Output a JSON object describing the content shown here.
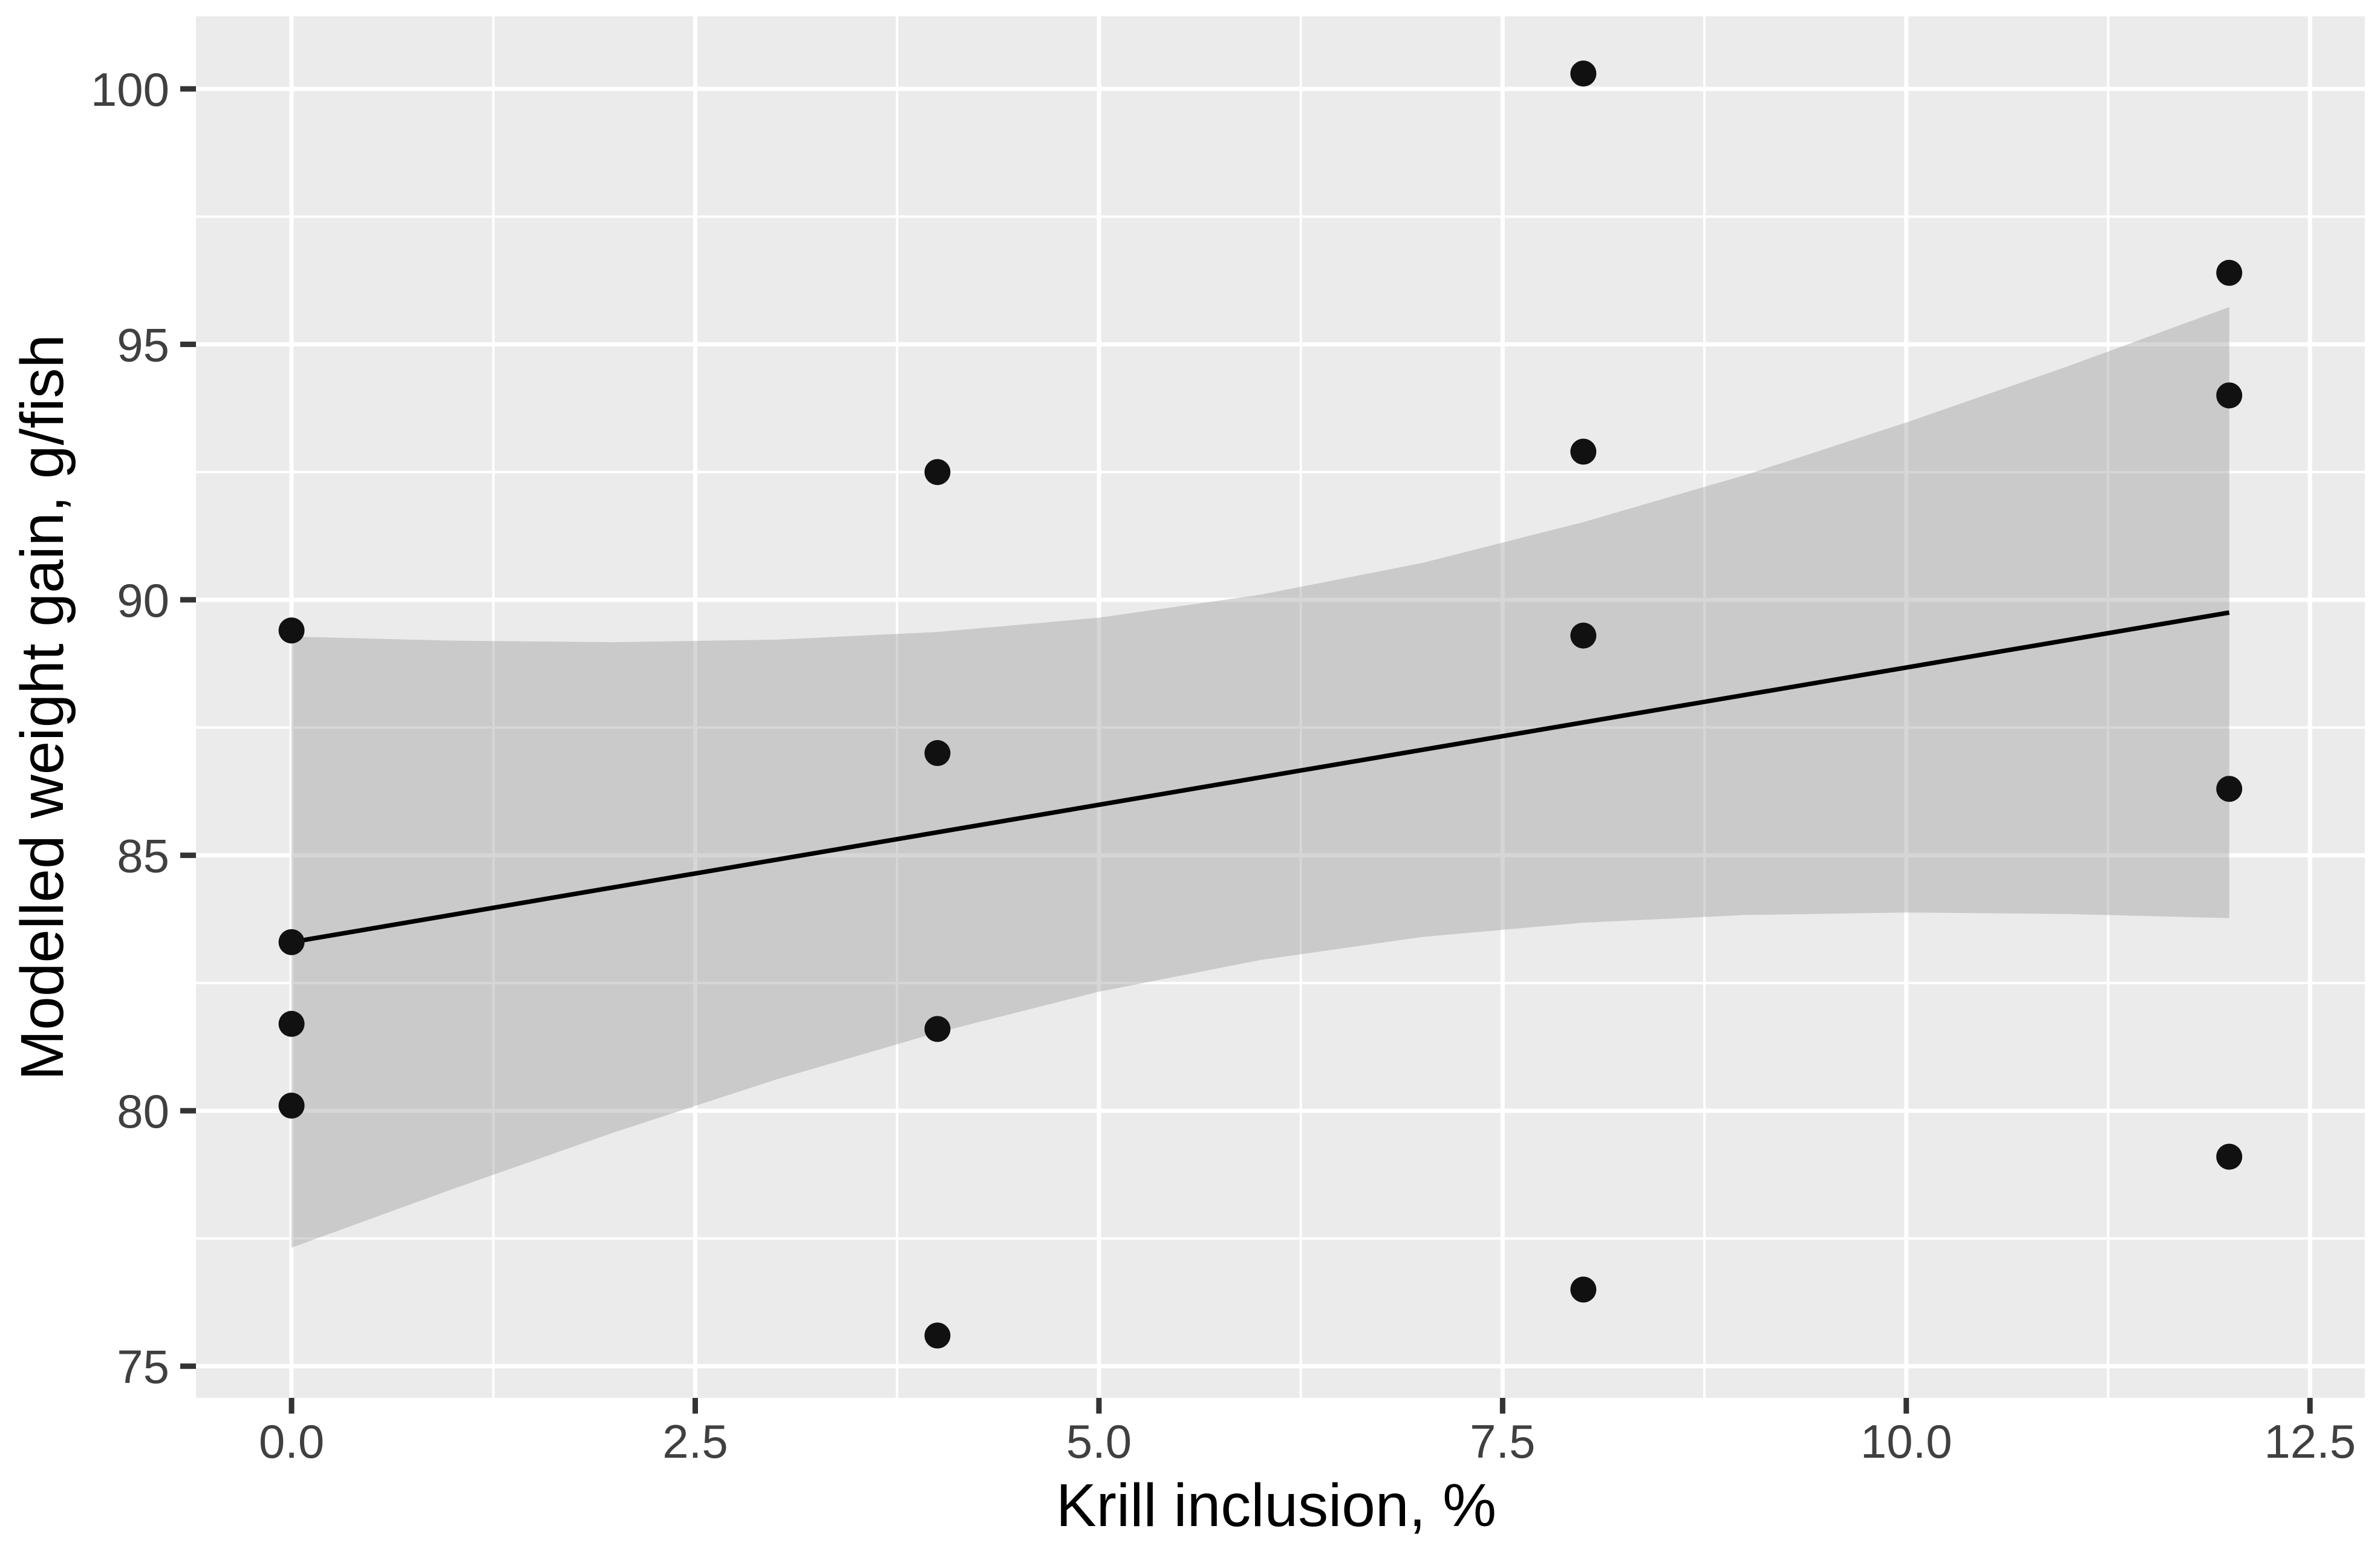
{
  "figure": {
    "background": "#FFFFFF",
    "panel_background": "#EBEBEB",
    "gridline_color": "#FFFFFF",
    "tick_mark_color": "#333333",
    "tick_label_color": "#404040",
    "axis_title_color": "#000000",
    "point_color": "#111111",
    "regression_line_color": "#000000",
    "band_color": "#999999",
    "band_opacity": 0.4
  },
  "chart_data": {
    "type": "scatter",
    "title": "",
    "xlabel": "Krill inclusion, %",
    "ylabel": "Modelled weight gain, g/fish",
    "xlim": [
      -0.592,
      12.84
    ],
    "ylim": [
      74.38,
      101.42
    ],
    "grid": true,
    "legend": false,
    "x_ticks": {
      "values": [
        0,
        2.5,
        5,
        7.5,
        10,
        12.5
      ],
      "labels": [
        "0.0",
        "2.5",
        "5.0",
        "7.5",
        "10.0",
        "12.5"
      ]
    },
    "y_ticks": {
      "values": [
        75,
        80,
        85,
        90,
        95,
        100
      ],
      "labels": [
        "75",
        "80",
        "85",
        "90",
        "95",
        "100"
      ]
    },
    "x_minor_gridlines": [
      1.25,
      3.75,
      6.25,
      8.75,
      11.25
    ],
    "y_minor_gridlines": [
      77.5,
      82.5,
      87.5,
      92.5,
      97.5
    ],
    "points": [
      {
        "x": 0,
        "y": 89.4
      },
      {
        "x": 0,
        "y": 83.3
      },
      {
        "x": 0,
        "y": 81.7
      },
      {
        "x": 0,
        "y": 80.1
      },
      {
        "x": 4,
        "y": 92.5
      },
      {
        "x": 4,
        "y": 87.0
      },
      {
        "x": 4,
        "y": 81.6
      },
      {
        "x": 4,
        "y": 75.6
      },
      {
        "x": 8,
        "y": 100.3
      },
      {
        "x": 8,
        "y": 92.9
      },
      {
        "x": 8,
        "y": 89.3
      },
      {
        "x": 8,
        "y": 76.5
      },
      {
        "x": 12,
        "y": 96.4
      },
      {
        "x": 12,
        "y": 94.0
      },
      {
        "x": 12,
        "y": 86.3
      },
      {
        "x": 12,
        "y": 79.1
      }
    ],
    "regression_line": {
      "x1": 0,
      "y1": 83.3,
      "x2": 12,
      "y2": 89.75
    },
    "confidence_band": {
      "x": [
        0,
        1,
        2,
        3,
        4,
        5,
        6,
        7,
        8,
        9,
        10,
        11,
        12
      ],
      "lower": [
        77.32,
        78.47,
        79.58,
        80.61,
        81.53,
        82.33,
        82.95,
        83.4,
        83.68,
        83.83,
        83.88,
        83.85,
        83.77
      ],
      "upper": [
        89.28,
        89.2,
        89.17,
        89.22,
        89.37,
        89.65,
        90.1,
        90.72,
        91.52,
        92.44,
        93.47,
        94.57,
        95.73
      ]
    }
  }
}
